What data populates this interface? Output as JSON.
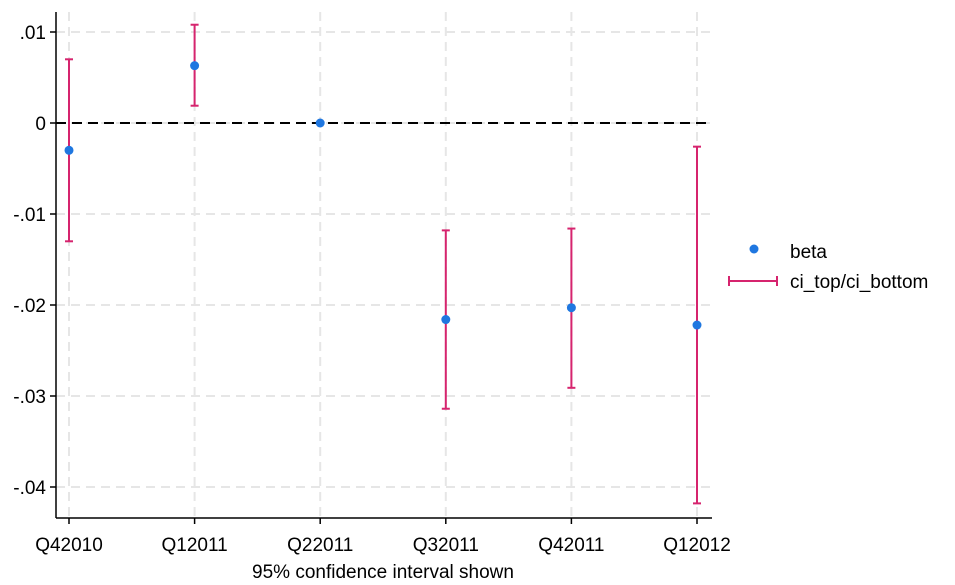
{
  "chart_data": {
    "type": "scatter",
    "title": "",
    "xlabel": "95% confidence interval shown",
    "ylabel": "",
    "categories": [
      "Q42010",
      "Q12011",
      "Q22011",
      "Q32011",
      "Q42011",
      "Q12012"
    ],
    "y_ticks": [
      0.01,
      0,
      -0.01,
      -0.02,
      -0.03,
      -0.04
    ],
    "y_tick_labels": [
      ".01",
      "0",
      "-.01",
      "-.02",
      "-.03",
      "-.04"
    ],
    "ylim": [
      -0.0435,
      0.0123
    ],
    "grid": true,
    "reference_line": 0,
    "legend_position": "right",
    "series": [
      {
        "name": "beta",
        "kind": "point",
        "color": "#1f77e0",
        "values": [
          -0.003,
          0.0063,
          0.0,
          -0.0216,
          -0.0203,
          -0.0222
        ]
      },
      {
        "name": "ci_top/ci_bottom",
        "kind": "range",
        "color": "#d6246e",
        "upper": [
          0.007,
          0.0108,
          0.0,
          -0.0118,
          -0.0116,
          -0.0026
        ],
        "lower": [
          -0.013,
          0.0019,
          0.0,
          -0.0314,
          -0.0291,
          -0.0418
        ]
      }
    ]
  }
}
